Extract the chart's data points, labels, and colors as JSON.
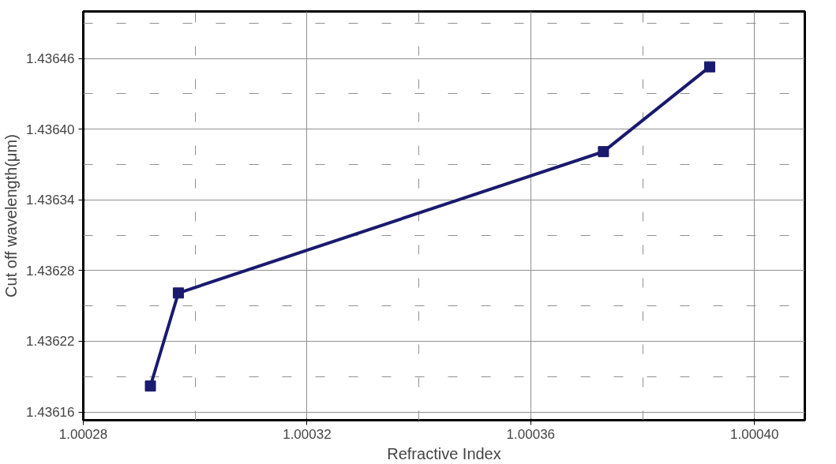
{
  "chart_data": {
    "type": "line",
    "xlabel": "Refractive Index",
    "ylabel": "Cut off wavelength(μm)",
    "series": [
      {
        "color": "#1a1a6e",
        "x": [
          1.000292,
          1.000297,
          1.000373,
          1.000392
        ],
        "values": [
          1.436182,
          1.436261,
          1.436381,
          1.436453
        ]
      }
    ],
    "xlim": [
      1.00028,
      1.000409
    ],
    "ylim": [
      1.436153,
      1.4365
    ],
    "xticks": [
      {
        "value": 1.00028,
        "label": "1.00028"
      },
      {
        "value": 1.00032,
        "label": "1.00032"
      },
      {
        "value": 1.00036,
        "label": "1.00036"
      },
      {
        "value": 1.0004,
        "label": "1.00040"
      }
    ],
    "yticks": [
      {
        "value": 1.43616,
        "label": "1.43616"
      },
      {
        "value": 1.43622,
        "label": "1.43622"
      },
      {
        "value": 1.43628,
        "label": "1.43628"
      },
      {
        "value": 1.43634,
        "label": "1.43634"
      },
      {
        "value": 1.4364,
        "label": "1.43640"
      },
      {
        "value": 1.43646,
        "label": "1.43646"
      }
    ],
    "grid": true,
    "marker": "square",
    "line_style": "solid"
  }
}
